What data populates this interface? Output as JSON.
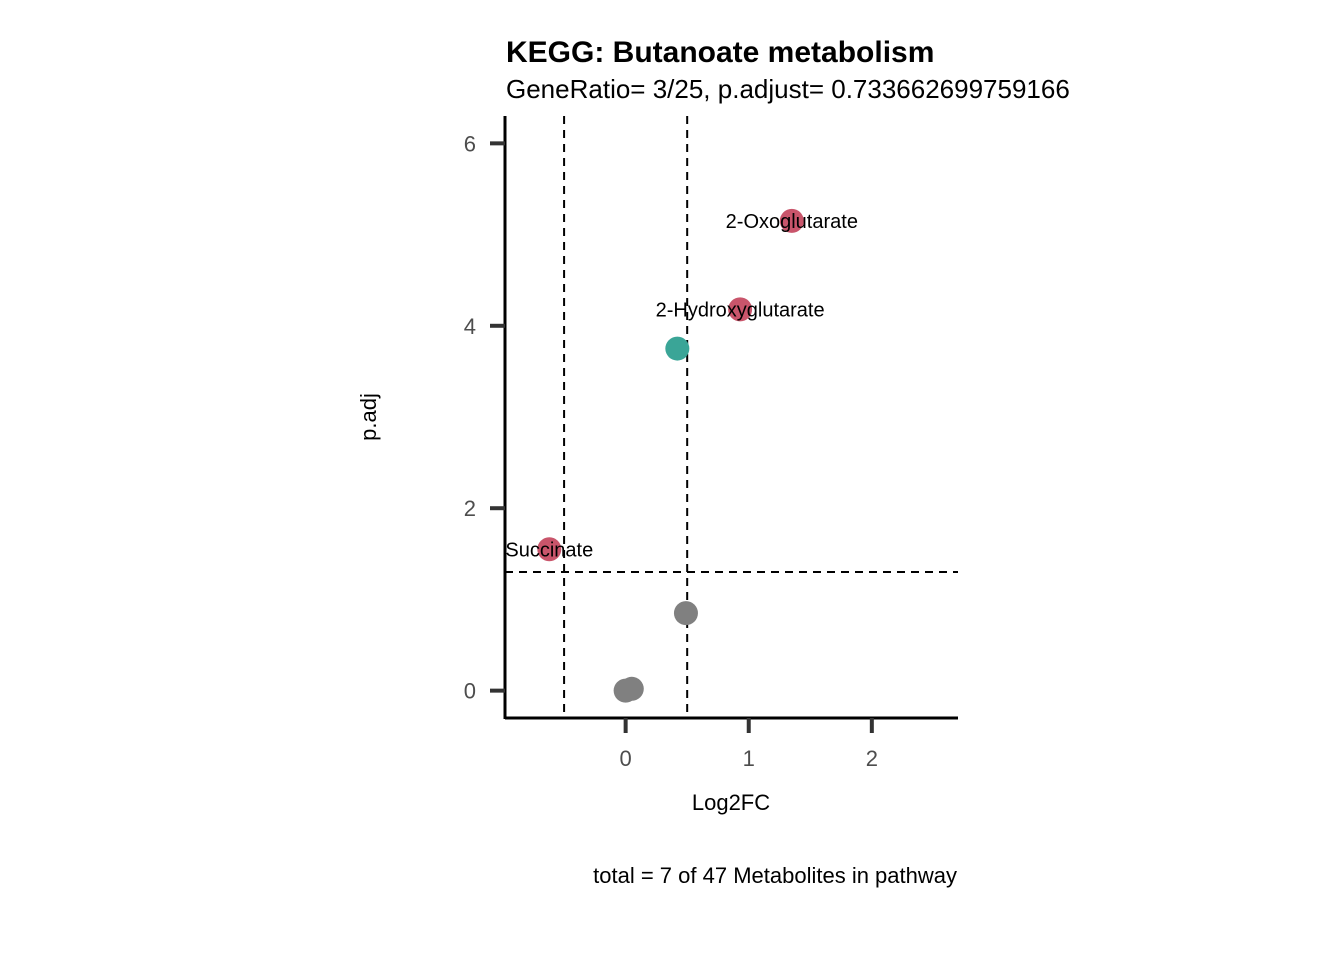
{
  "chart_data": {
    "type": "scatter",
    "title": "KEGG: Butanoate metabolism",
    "subtitle": "GeneRatio= 3/25, p.adjust= 0.733662699759166",
    "xlabel": "Log2FC",
    "ylabel": "p.adj",
    "caption": "total = 7 of 47 Metabolites in pathway",
    "xlim": [
      -0.98,
      2.7
    ],
    "ylim": [
      -0.3,
      6.3
    ],
    "xticks": [
      0,
      1,
      2
    ],
    "yticks": [
      0,
      2,
      4,
      6
    ],
    "reference_lines": {
      "vertical": [
        -0.5,
        0.5
      ],
      "horizontal": [
        1.3
      ]
    },
    "colors": {
      "up": "#c9556b",
      "down": "#3aa597",
      "ns": "#808080"
    },
    "points": [
      {
        "x": 1.35,
        "y": 5.15,
        "label": "2-Oxoglutarate",
        "group": "up"
      },
      {
        "x": 0.93,
        "y": 4.18,
        "label": "2-Hydroxyglutarate",
        "group": "up"
      },
      {
        "x": 0.42,
        "y": 3.75,
        "label": "",
        "group": "down"
      },
      {
        "x": -0.62,
        "y": 1.55,
        "label": "Succinate",
        "group": "up"
      },
      {
        "x": 0.49,
        "y": 0.85,
        "label": "",
        "group": "ns"
      },
      {
        "x": 0.0,
        "y": 0.0,
        "label": "",
        "group": "ns"
      },
      {
        "x": 0.05,
        "y": 0.02,
        "label": "",
        "group": "ns"
      }
    ]
  }
}
